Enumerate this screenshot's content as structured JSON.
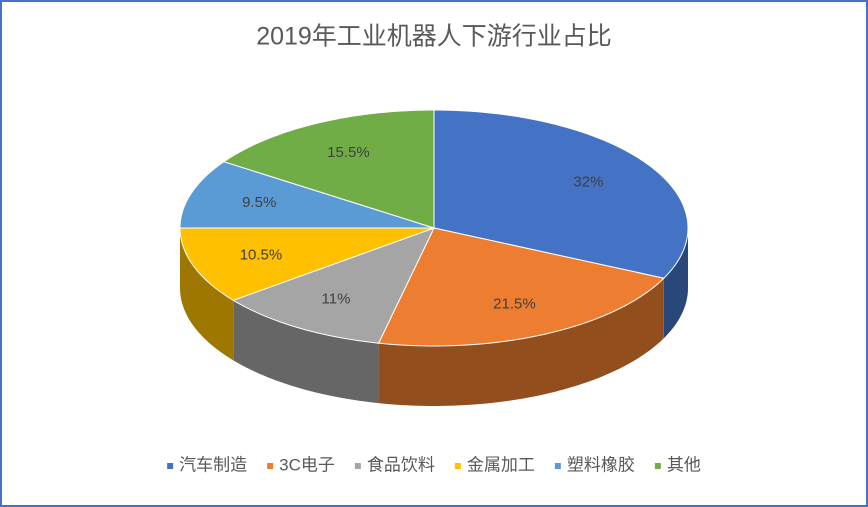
{
  "chart_data": {
    "type": "pie",
    "title": "2019年工业机器人下游行业占比",
    "categories": [
      "汽车制造",
      "3C电子",
      "食品饮料",
      "金属加工",
      "塑料橡胶",
      "其他"
    ],
    "values": [
      32,
      21.5,
      11,
      10.5,
      9.5,
      15.5
    ],
    "value_labels": [
      "32%",
      "21.5%",
      "11%",
      "10.5%",
      "9.5%",
      "15.5%"
    ],
    "colors": [
      "#4472c4",
      "#ed7d31",
      "#a5a5a5",
      "#ffc000",
      "#5b9bd5",
      "#70ad47"
    ],
    "legend": "bottom"
  }
}
